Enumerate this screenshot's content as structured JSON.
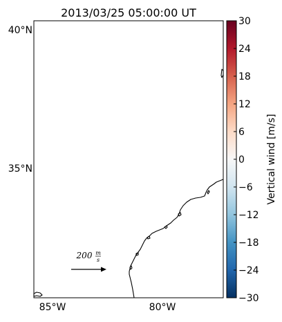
{
  "title": "2013/03/25 05:00:00 UT",
  "lat_labels": [
    "40°N",
    "35°N"
  ],
  "lon_labels": [
    "85°W",
    "80°W"
  ],
  "colorbar": {
    "label": "Vertical wind [m/s]",
    "ticks": [
      "30",
      "24",
      "18",
      "12",
      "6",
      "0",
      "−6",
      "−12",
      "−18",
      "−24",
      "−30"
    ],
    "range": [
      -30,
      30
    ],
    "colormap": "RdBu_r",
    "colors": [
      "#67001f",
      "#b2182b",
      "#d6604d",
      "#f4a582",
      "#fddbc7",
      "#f7f7f7",
      "#d1e5f0",
      "#92c5de",
      "#4393c3",
      "#2166ac",
      "#053061"
    ]
  },
  "reference_arrow": {
    "value": "200",
    "unit_num": "m",
    "unit_den": "s"
  },
  "coastline_color": "#000000"
}
